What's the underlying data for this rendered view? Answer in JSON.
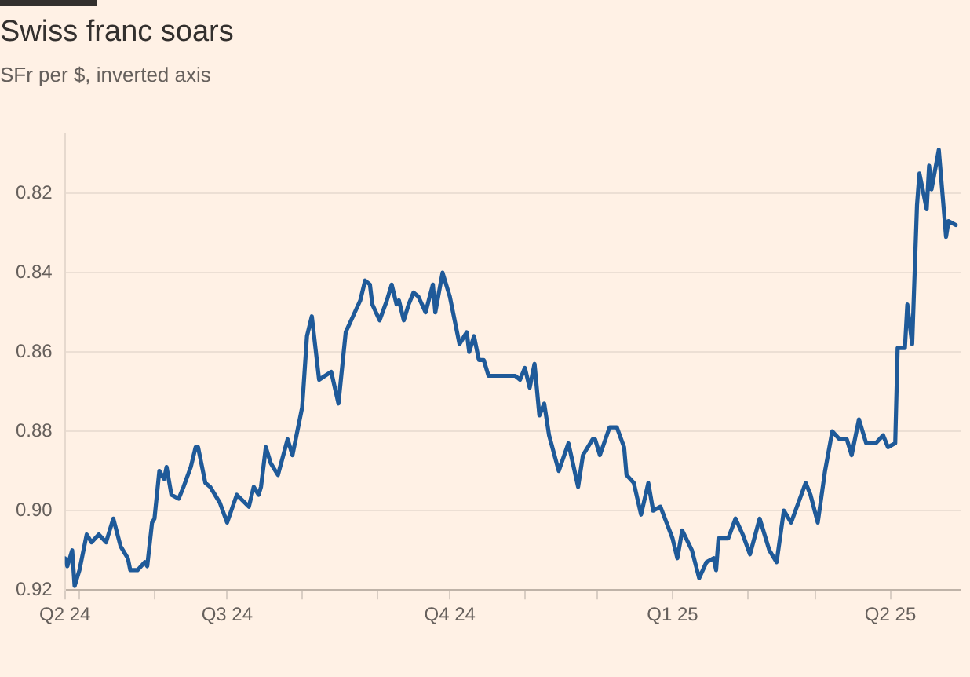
{
  "chart_data": {
    "type": "line",
    "title": "Swiss franc soars",
    "subtitle": "SFr per $, inverted axis",
    "x": [
      "2024-04-25",
      "2024-04-26",
      "2024-04-28",
      "2024-04-29",
      "2024-05-01",
      "2024-05-04",
      "2024-05-06",
      "2024-05-09",
      "2024-05-12",
      "2024-05-15",
      "2024-05-18",
      "2024-05-21",
      "2024-05-22",
      "2024-05-25",
      "2024-05-28",
      "2024-05-29",
      "2024-05-31",
      "2024-06-01",
      "2024-06-03",
      "2024-06-05",
      "2024-06-06",
      "2024-06-08",
      "2024-06-11",
      "2024-06-13",
      "2024-06-16",
      "2024-06-18",
      "2024-06-19",
      "2024-06-22",
      "2024-06-24",
      "2024-06-28",
      "2024-07-01",
      "2024-07-05",
      "2024-07-10",
      "2024-07-12",
      "2024-07-14",
      "2024-07-15",
      "2024-07-17",
      "2024-07-19",
      "2024-07-22",
      "2024-07-26",
      "2024-07-28",
      "2024-08-01",
      "2024-08-03",
      "2024-08-05",
      "2024-08-08",
      "2024-08-13",
      "2024-08-16",
      "2024-08-19",
      "2024-08-22",
      "2024-08-25",
      "2024-08-27",
      "2024-08-29",
      "2024-08-30",
      "2024-09-02",
      "2024-09-05",
      "2024-09-07",
      "2024-09-09",
      "2024-09-10",
      "2024-09-12",
      "2024-09-14",
      "2024-09-16",
      "2024-09-18",
      "2024-09-21",
      "2024-09-24",
      "2024-09-25",
      "2024-09-28",
      "2024-10-01",
      "2024-10-05",
      "2024-10-08",
      "2024-10-09",
      "2024-10-11",
      "2024-10-13",
      "2024-10-15",
      "2024-10-17",
      "2024-10-21",
      "2024-10-28",
      "2024-10-30",
      "2024-11-01",
      "2024-11-03",
      "2024-11-05",
      "2024-11-07",
      "2024-11-09",
      "2024-11-11",
      "2024-11-15",
      "2024-11-19",
      "2024-11-23",
      "2024-11-25",
      "2024-11-29",
      "2024-11-30",
      "2024-12-02",
      "2024-12-06",
      "2024-12-09",
      "2024-12-12",
      "2024-12-13",
      "2024-12-16",
      "2024-12-19",
      "2024-12-22",
      "2024-12-24",
      "2024-12-27",
      "2025-01-01",
      "2025-01-03",
      "2025-01-05",
      "2025-01-09",
      "2025-01-12",
      "2025-01-15",
      "2025-01-18",
      "2025-01-19",
      "2025-01-20",
      "2025-01-24",
      "2025-01-27",
      "2025-01-30",
      "2025-02-02",
      "2025-02-06",
      "2025-02-10",
      "2025-02-13",
      "2025-02-16",
      "2025-02-19",
      "2025-02-22",
      "2025-02-25",
      "2025-02-27",
      "2025-03-02",
      "2025-03-05",
      "2025-03-08",
      "2025-03-11",
      "2025-03-14",
      "2025-03-16",
      "2025-03-19",
      "2025-03-22",
      "2025-03-26",
      "2025-03-29",
      "2025-03-31",
      "2025-04-03",
      "2025-04-04",
      "2025-04-07",
      "2025-04-08",
      "2025-04-10",
      "2025-04-12",
      "2025-04-13",
      "2025-04-16",
      "2025-04-17",
      "2025-04-18",
      "2025-04-21",
      "2025-04-24",
      "2025-04-25",
      "2025-04-28"
    ],
    "series": [
      {
        "color": "#1f5a99",
        "values": [
          0.912,
          0.914,
          0.91,
          0.919,
          0.915,
          0.906,
          0.908,
          0.906,
          0.908,
          0.902,
          0.909,
          0.912,
          0.915,
          0.915,
          0.913,
          0.914,
          0.903,
          0.902,
          0.89,
          0.892,
          0.889,
          0.896,
          0.897,
          0.894,
          0.889,
          0.884,
          0.884,
          0.893,
          0.894,
          0.898,
          0.903,
          0.896,
          0.899,
          0.894,
          0.896,
          0.894,
          0.884,
          0.888,
          0.891,
          0.882,
          0.886,
          0.874,
          0.856,
          0.851,
          0.867,
          0.865,
          0.873,
          0.855,
          0.851,
          0.847,
          0.842,
          0.843,
          0.848,
          0.852,
          0.847,
          0.843,
          0.848,
          0.847,
          0.852,
          0.848,
          0.845,
          0.846,
          0.85,
          0.843,
          0.85,
          0.84,
          0.846,
          0.858,
          0.855,
          0.86,
          0.856,
          0.862,
          0.862,
          0.866,
          0.866,
          0.866,
          0.867,
          0.864,
          0.869,
          0.863,
          0.876,
          0.873,
          0.881,
          0.89,
          0.883,
          0.894,
          0.886,
          0.882,
          0.882,
          0.886,
          0.879,
          0.879,
          0.884,
          0.891,
          0.893,
          0.901,
          0.893,
          0.9,
          0.899,
          0.907,
          0.912,
          0.905,
          0.91,
          0.917,
          0.913,
          0.912,
          0.915,
          0.907,
          0.907,
          0.902,
          0.906,
          0.911,
          0.902,
          0.91,
          0.913,
          0.9,
          0.903,
          0.898,
          0.893,
          0.896,
          0.903,
          0.89,
          0.88,
          0.882,
          0.882,
          0.886,
          0.877,
          0.883,
          0.883,
          0.881,
          0.884,
          0.883,
          0.859,
          0.859,
          0.848,
          0.858,
          0.823,
          0.815,
          0.824,
          0.813,
          0.819,
          0.809,
          0.831,
          0.827,
          0.828
        ]
      }
    ],
    "xlim": [
      "2024-04-25",
      "2025-04-30"
    ],
    "xticks": [
      {
        "value": "2024-04-25",
        "label": "Q2 24"
      },
      {
        "value": "2024-05-01",
        "label": null
      },
      {
        "value": "2024-06-01",
        "label": null
      },
      {
        "value": "2024-07-01",
        "label": "Q3 24"
      },
      {
        "value": "2024-08-01",
        "label": null
      },
      {
        "value": "2024-09-01",
        "label": null
      },
      {
        "value": "2024-10-01",
        "label": "Q4 24"
      },
      {
        "value": "2024-11-01",
        "label": null
      },
      {
        "value": "2024-12-01",
        "label": null
      },
      {
        "value": "2025-01-01",
        "label": "Q1 25"
      },
      {
        "value": "2025-02-01",
        "label": null
      },
      {
        "value": "2025-03-01",
        "label": null
      },
      {
        "value": "2025-04-01",
        "label": "Q2 25"
      }
    ],
    "ylim": [
      0.92,
      0.805
    ],
    "yticks": [
      {
        "value": 0.82,
        "label": "0.82"
      },
      {
        "value": 0.84,
        "label": "0.84"
      },
      {
        "value": 0.86,
        "label": "0.86"
      },
      {
        "value": 0.88,
        "label": "0.88"
      },
      {
        "value": 0.9,
        "label": "0.90"
      },
      {
        "value": 0.92,
        "label": "0.92"
      }
    ],
    "grid": "y",
    "legend": false,
    "marker": "none",
    "line_style": "solid"
  }
}
